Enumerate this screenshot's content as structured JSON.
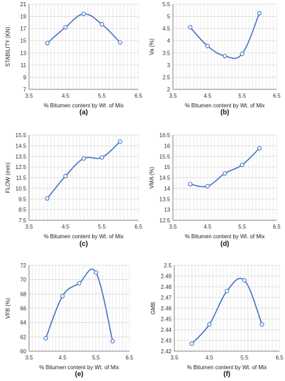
{
  "colors": {
    "line": "#4472C4",
    "grid": "#D9D9D9",
    "axis": "#808080",
    "plot_bg": "#ffffff"
  },
  "chart_data": [
    {
      "type": "line",
      "panel_label": "(a)",
      "xlabel": "% Bitumen content by Wt. of Mix",
      "ylabel": "STABILITY (KN)",
      "xlim": [
        3.5,
        6.5
      ],
      "ylim": [
        7,
        21
      ],
      "xticks": [
        "3.5",
        "4.5",
        "5.5",
        "6.5"
      ],
      "yticks": [
        "7",
        "9",
        "11",
        "13",
        "15",
        "17",
        "19",
        "21"
      ],
      "x": [
        4,
        4.5,
        5,
        5.5,
        6
      ],
      "y": [
        14.6,
        17.2,
        19.4,
        17.7,
        14.7
      ]
    },
    {
      "type": "line",
      "panel_label": "(b)",
      "xlabel": "% Bitumen content by Wt. of Mix",
      "ylabel": "Va (%)",
      "xlim": [
        3.5,
        6.5
      ],
      "ylim": [
        2,
        5.5
      ],
      "xticks": [
        "3.5",
        "4.5",
        "5.5",
        "6.5"
      ],
      "yticks": [
        "2",
        "2.5",
        "3",
        "3.5",
        "4",
        "4.5",
        "5",
        "5.5"
      ],
      "x": [
        4,
        4.5,
        5,
        5.5,
        6
      ],
      "y": [
        4.55,
        3.78,
        3.37,
        3.46,
        5.13
      ]
    },
    {
      "type": "line",
      "panel_label": "(c)",
      "xlabel": "% Bitumen content by Wt. of Mix",
      "ylabel": "FLOW (mm)",
      "xlim": [
        3.5,
        6.5
      ],
      "ylim": [
        7.5,
        15.5
      ],
      "xticks": [
        "3.5",
        "4.5",
        "5.5",
        "6.5"
      ],
      "yticks": [
        "7.5",
        "8.5",
        "9.5",
        "10.5",
        "11.5",
        "12.5",
        "13.5",
        "14.5",
        "15.5"
      ],
      "x": [
        4,
        4.5,
        5,
        5.5,
        6
      ],
      "y": [
        9.55,
        11.65,
        13.3,
        13.4,
        14.9
      ]
    },
    {
      "type": "line",
      "panel_label": "(d)",
      "xlabel": "% Bitumen content by Wt. of Mix",
      "ylabel": "VMA (%)",
      "xlim": [
        3.5,
        6.5
      ],
      "ylim": [
        12.5,
        16.5
      ],
      "xticks": [
        "3.5",
        "4.5",
        "5.5",
        "6.5"
      ],
      "yticks": [
        "12.5",
        "13",
        "13.5",
        "14",
        "14.5",
        "15",
        "15.5",
        "16",
        "16.5"
      ],
      "x": [
        4,
        4.5,
        5,
        5.5,
        6
      ],
      "y": [
        14.2,
        14.1,
        14.7,
        15.1,
        15.88
      ]
    },
    {
      "type": "line",
      "panel_label": "(e)",
      "xlabel": "% Bitumen content by Wt. of Mix",
      "ylabel": "VFB (%)",
      "xlim": [
        3.5,
        6.5
      ],
      "ylim": [
        60,
        72
      ],
      "xticks": [
        "3.5",
        "4.5",
        "5.5",
        "6.5"
      ],
      "yticks": [
        "60",
        "62",
        "64",
        "66",
        "68",
        "70",
        "72"
      ],
      "x": [
        4,
        4.5,
        5,
        5.5,
        6
      ],
      "y": [
        61.8,
        67.7,
        69.5,
        71.0,
        61.4
      ]
    },
    {
      "type": "line",
      "panel_label": "(f)",
      "xlabel": "% Bitumen content by Wt. of Mix",
      "ylabel": "GMB",
      "xlim": [
        3.5,
        6.5
      ],
      "ylim": [
        2.42,
        2.5
      ],
      "xticks": [
        "3.5",
        "4.5",
        "5.5",
        "6.5"
      ],
      "yticks": [
        "2.42",
        "2.43",
        "2.44",
        "2.45",
        "2.46",
        "2.47",
        "2.48",
        "2.49",
        "2.5"
      ],
      "x": [
        4,
        4.5,
        5,
        5.5,
        6
      ],
      "y": [
        2.427,
        2.445,
        2.476,
        2.486,
        2.445
      ]
    }
  ]
}
